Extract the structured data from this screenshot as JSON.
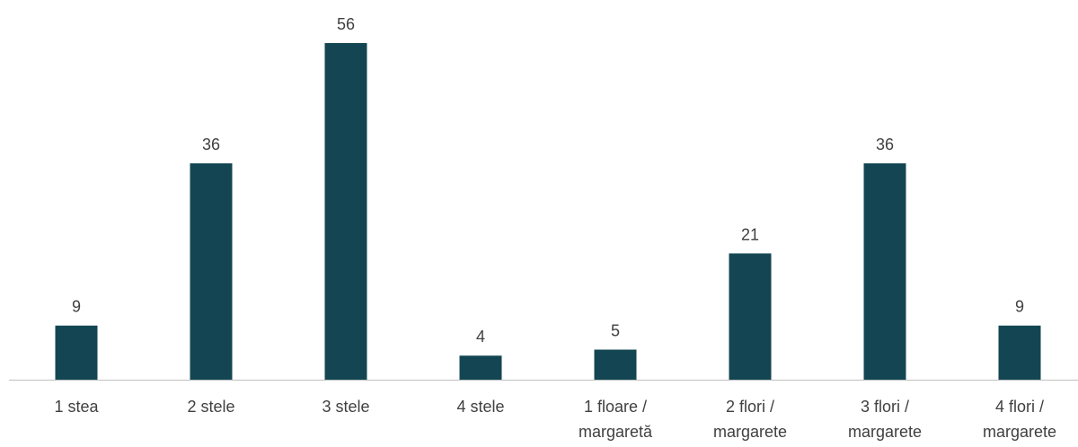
{
  "chart_data": {
    "type": "bar",
    "categories": [
      [
        "1 stea"
      ],
      [
        "2 stele"
      ],
      [
        "3 stele"
      ],
      [
        "4 stele"
      ],
      [
        "1 floare /",
        "margaretă"
      ],
      [
        "2 flori /",
        "margarete"
      ],
      [
        "3 flori /",
        "margarete"
      ],
      [
        "4 flori /",
        "margarete"
      ]
    ],
    "values": [
      9,
      36,
      56,
      4,
      5,
      21,
      36,
      9
    ],
    "ylim": [
      0,
      56
    ],
    "grid": false,
    "bar_color": "#134652",
    "axis_color": "#bfbfbf",
    "label_color": "#404040"
  }
}
